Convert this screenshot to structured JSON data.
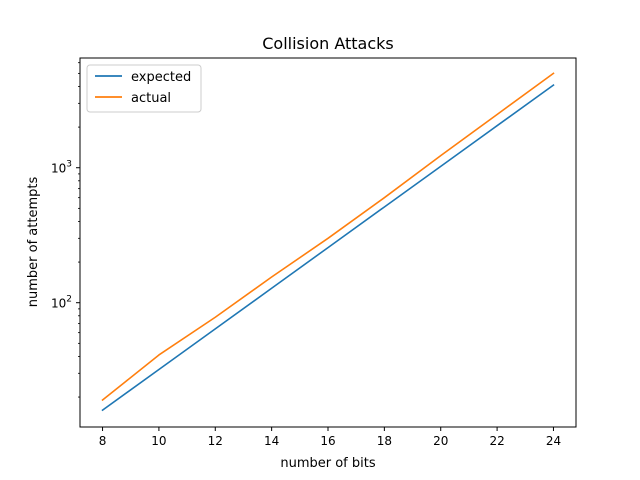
{
  "chart_data": {
    "type": "line",
    "title": "Collision Attacks",
    "xlabel": "number of bits",
    "ylabel": "number of attempts",
    "x": [
      8,
      10,
      12,
      14,
      16,
      18,
      20,
      22,
      24
    ],
    "xlim": [
      7.2,
      24.8
    ],
    "ylim": [
      12,
      6500
    ],
    "yscale": "log",
    "grid": false,
    "legend_position": "top-left",
    "x_ticks": [
      "8",
      "10",
      "12",
      "14",
      "16",
      "18",
      "20",
      "22",
      "24"
    ],
    "y_ticks": [
      {
        "value": 100,
        "base": "10",
        "exp": "2"
      },
      {
        "value": 1000,
        "base": "10",
        "exp": "3"
      }
    ],
    "series": [
      {
        "name": "expected",
        "color": "#1f77b4",
        "values": [
          16,
          32,
          64,
          128,
          256,
          512,
          1024,
          2048,
          4096
        ]
      },
      {
        "name": "actual",
        "color": "#ff7f0e",
        "values": [
          19,
          41,
          78,
          155,
          300,
          600,
          1230,
          2480,
          5000
        ]
      }
    ]
  }
}
